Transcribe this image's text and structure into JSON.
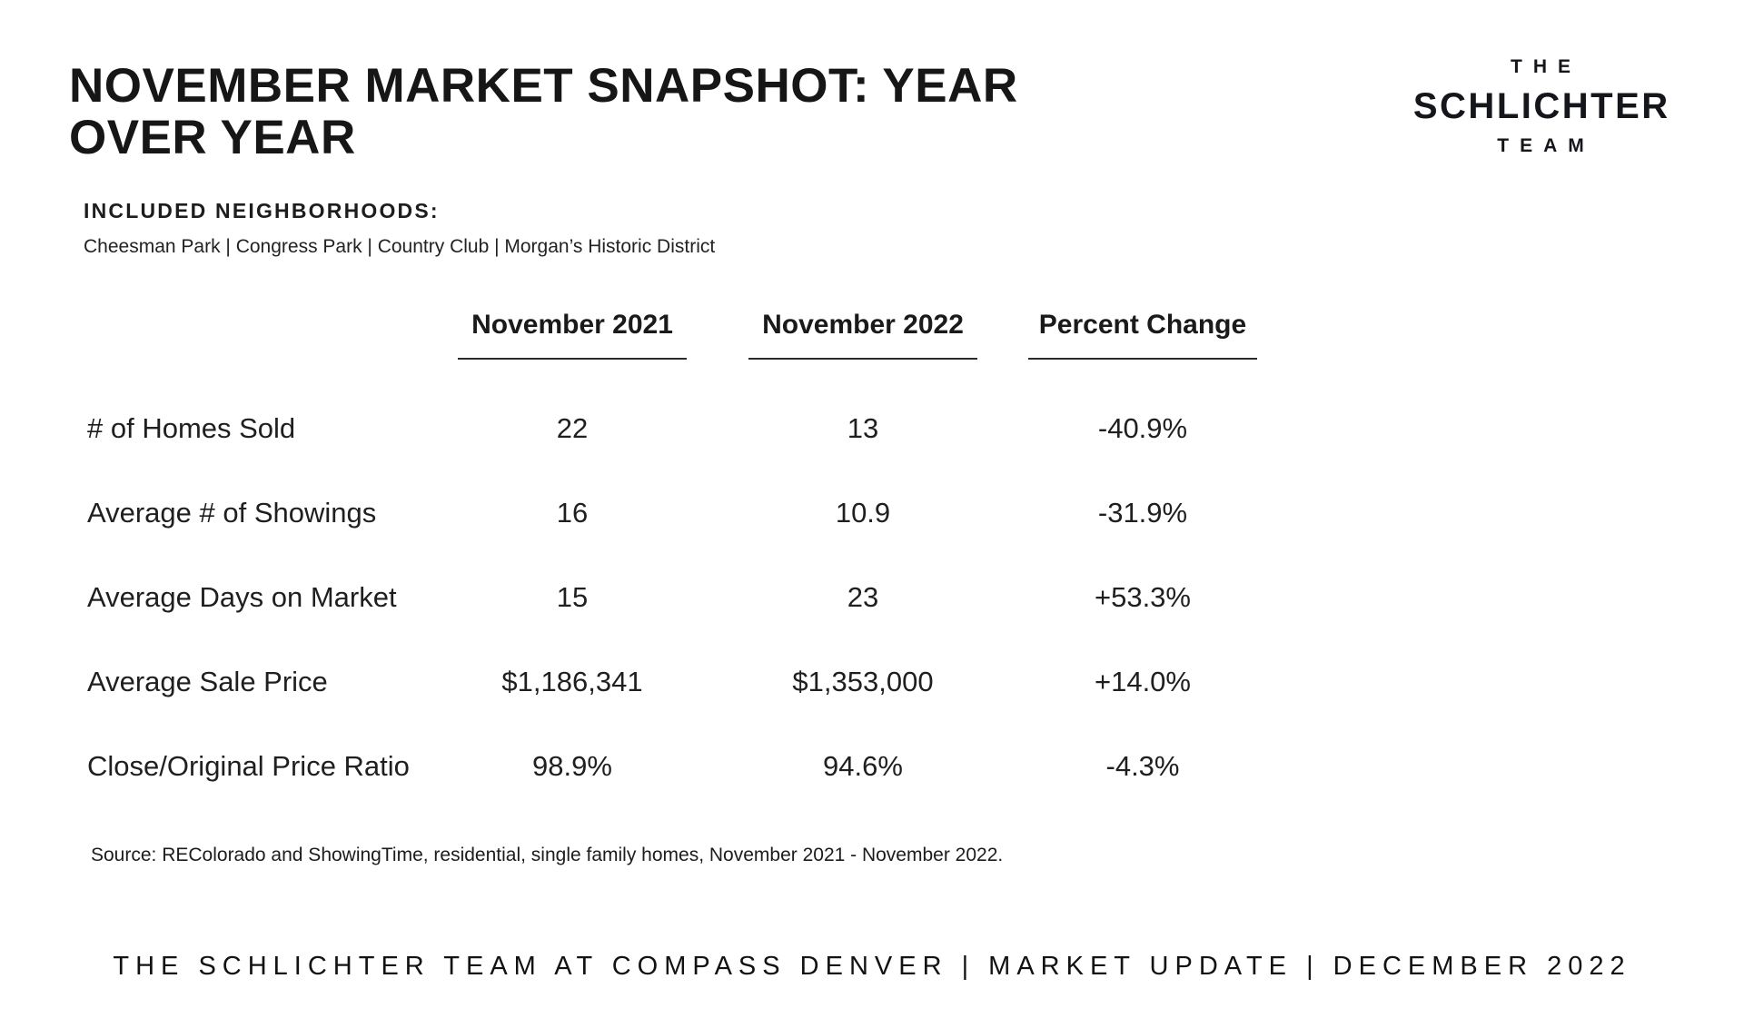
{
  "page": {
    "title": "NOVEMBER MARKET SNAPSHOT: YEAR OVER YEAR",
    "included_label": "INCLUDED NEIGHBORHOODS:",
    "neighborhoods": "Cheesman Park | Congress Park | Country Club | Morgan’s Historic District",
    "source": "Source: REColorado and ShowingTime, residential, single family homes, November 2021 - November 2022.",
    "footer": "THE SCHLICHTER TEAM AT COMPASS DENVER | MARKET UPDATE | DECEMBER 2022"
  },
  "logo": {
    "line1": "THE",
    "line2": "SCHLICHTER",
    "line3": "TEAM"
  },
  "table": {
    "columns": [
      "November 2021",
      "November 2022",
      "Percent Change"
    ],
    "rows": [
      {
        "label": "# of Homes Sold",
        "nov2021": "22",
        "nov2022": "13",
        "change": "-40.9%"
      },
      {
        "label": "Average # of Showings",
        "nov2021": "16",
        "nov2022": "10.9",
        "change": "-31.9%"
      },
      {
        "label": "Average Days on Market",
        "nov2021": "15",
        "nov2022": "23",
        "change": "+53.3%"
      },
      {
        "label": "Average Sale Price",
        "nov2021": "$1,186,341",
        "nov2022": "$1,353,000",
        "change": "+14.0%"
      },
      {
        "label": "Close/Original Price Ratio",
        "nov2021": "98.9%",
        "nov2022": "94.6%",
        "change": "-4.3%"
      }
    ]
  },
  "colors": {
    "text": "#1d1d1d",
    "underline": "#2b2b2b",
    "background": "#ffffff"
  }
}
